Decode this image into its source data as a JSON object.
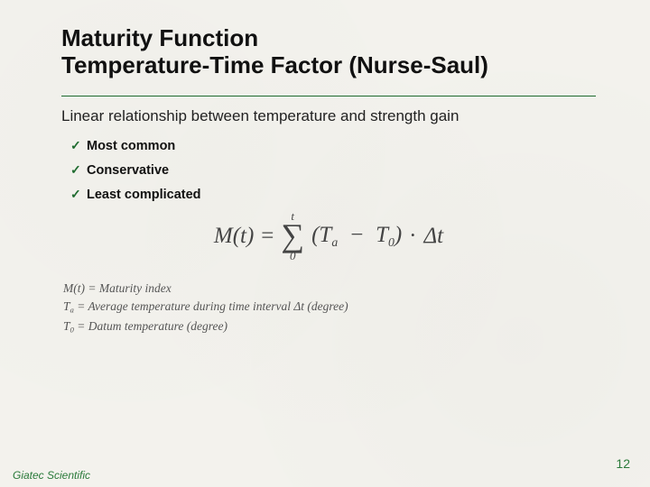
{
  "title": {
    "line1": "Maturity Function",
    "line2": "Temperature-Time Factor (Nurse-Saul)"
  },
  "subtitle": "Linear relationship between temperature and strength gain",
  "checklist": [
    "Most common",
    "Conservative",
    "Least complicated"
  ],
  "formula": {
    "lhs": "M(t)",
    "sum_lower": "0",
    "sum_upper": "t",
    "inner_a": "T",
    "inner_a_sub": "a",
    "inner_b": "T",
    "inner_b_sub": "0",
    "dot": "·",
    "delta_t": "Δt"
  },
  "legend": {
    "l1_sym": "M(t)",
    "l1_txt": "Maturity index",
    "l2_sym": "T",
    "l2_sub": "a",
    "l2_txt": "Average temperature during time interval Δt (degree)",
    "l3_sym": "T",
    "l3_sub": "0",
    "l3_txt": "Datum temperature (degree)"
  },
  "footer": {
    "org": "Giatec Scientific",
    "page": "12"
  },
  "colors": {
    "accent": "#1f6b2f",
    "footer": "#2a7a3a",
    "text": "#222222",
    "formula": "#444444",
    "background": "#f3f2ed"
  }
}
